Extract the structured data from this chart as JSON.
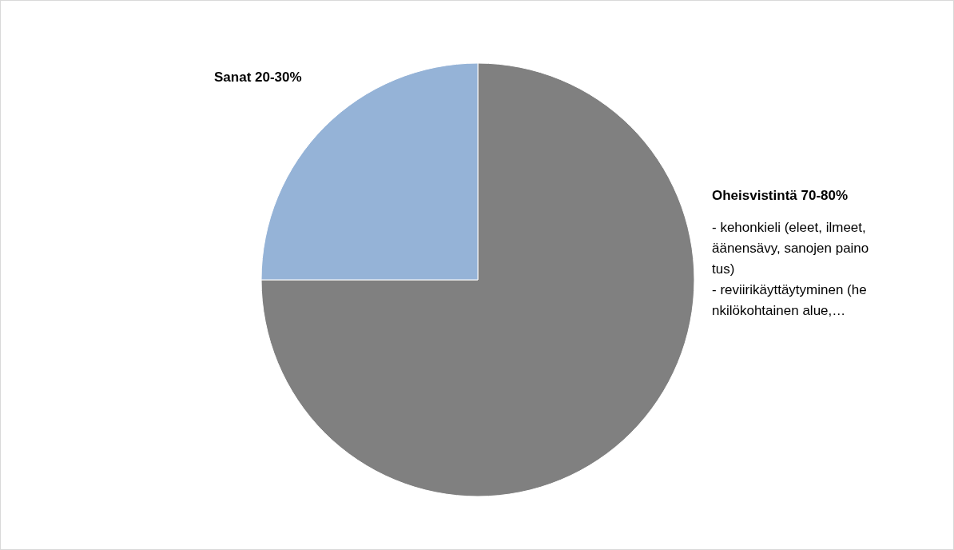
{
  "chart_data": {
    "type": "pie",
    "categories": [
      "Oheisvistintä 70-80%",
      "Sanat 20-30%"
    ],
    "values": [
      75,
      25
    ],
    "colors": [
      "#808080",
      "#95b3d7"
    ],
    "annotations": [
      "- kehonkieli (eleet, ilmeet, äänensävy, sanojen painotus)\n- reviirikäyttäytyminen (henkilökohtainen alue,…"
    ],
    "legend": false
  }
}
